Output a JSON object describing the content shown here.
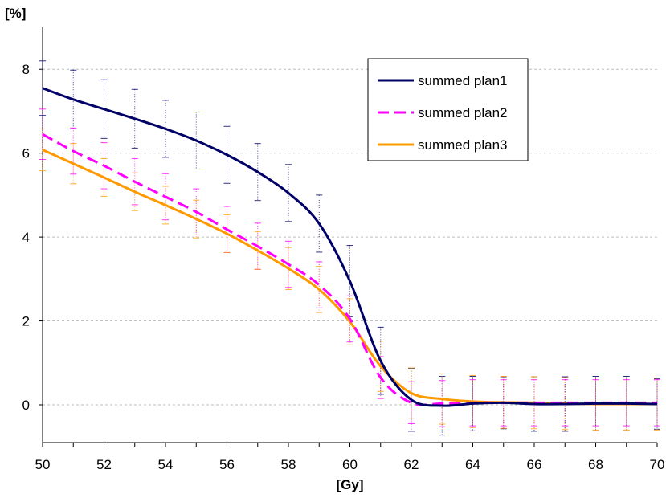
{
  "chart_data": {
    "type": "line",
    "xlabel": "[Gy]",
    "ylabel": "[%]",
    "xlim": [
      50,
      70
    ],
    "ylim": [
      -0.9,
      9.0
    ],
    "xticks": [
      50,
      52,
      54,
      56,
      58,
      60,
      62,
      64,
      66,
      68,
      70
    ],
    "yticks": [
      0,
      2,
      4,
      6,
      8
    ],
    "grid": "horizontal dashed",
    "legend_position": "top-right",
    "series": [
      {
        "name": "summed plan1",
        "color": "#000066",
        "style": "solid",
        "x": [
          50,
          51,
          52,
          53,
          54,
          55,
          56,
          57,
          58,
          59,
          60,
          61,
          62,
          63,
          64,
          65,
          66,
          67,
          68,
          69,
          70
        ],
        "y": [
          7.55,
          7.28,
          7.05,
          6.82,
          6.58,
          6.3,
          5.96,
          5.55,
          5.05,
          4.32,
          2.95,
          1.05,
          0.12,
          -0.02,
          0.03,
          0.05,
          0.02,
          0.02,
          0.03,
          0.03,
          0.02
        ],
        "err": [
          0.65,
          0.7,
          0.7,
          0.7,
          0.68,
          0.68,
          0.68,
          0.68,
          0.68,
          0.68,
          0.85,
          0.8,
          0.75,
          0.7,
          0.65,
          0.62,
          0.65,
          0.65,
          0.65,
          0.65,
          0.6
        ]
      },
      {
        "name": "summed plan2",
        "color": "#ff00ff",
        "style": "dashed",
        "x": [
          50,
          51,
          52,
          53,
          54,
          55,
          56,
          57,
          58,
          59,
          60,
          61,
          62,
          63,
          64,
          65,
          66,
          67,
          68,
          69,
          70
        ],
        "y": [
          6.45,
          6.05,
          5.7,
          5.32,
          4.96,
          4.6,
          4.18,
          3.78,
          3.35,
          2.86,
          2.05,
          0.65,
          0.05,
          0.03,
          0.05,
          0.05,
          0.05,
          0.05,
          0.05,
          0.05,
          0.05
        ],
        "err": [
          0.6,
          0.55,
          0.55,
          0.55,
          0.55,
          0.55,
          0.55,
          0.55,
          0.55,
          0.55,
          0.55,
          0.5,
          0.5,
          0.55,
          0.55,
          0.55,
          0.55,
          0.55,
          0.55,
          0.55,
          0.55
        ]
      },
      {
        "name": "summed plan3",
        "color": "#ff9900",
        "style": "solid",
        "x": [
          50,
          51,
          52,
          53,
          54,
          55,
          56,
          57,
          58,
          59,
          60,
          61,
          62,
          63,
          64,
          65,
          66,
          67,
          68,
          69,
          70
        ],
        "y": [
          6.08,
          5.75,
          5.42,
          5.08,
          4.76,
          4.43,
          4.08,
          3.68,
          3.25,
          2.75,
          1.98,
          0.92,
          0.28,
          0.14,
          0.08,
          0.06,
          0.05,
          0.03,
          0.02,
          0.02,
          0.02
        ],
        "err": [
          0.5,
          0.48,
          0.45,
          0.45,
          0.45,
          0.45,
          0.45,
          0.45,
          0.5,
          0.55,
          0.55,
          0.6,
          0.6,
          0.6,
          0.62,
          0.62,
          0.62,
          0.62,
          0.62,
          0.62,
          0.62
        ]
      }
    ]
  }
}
